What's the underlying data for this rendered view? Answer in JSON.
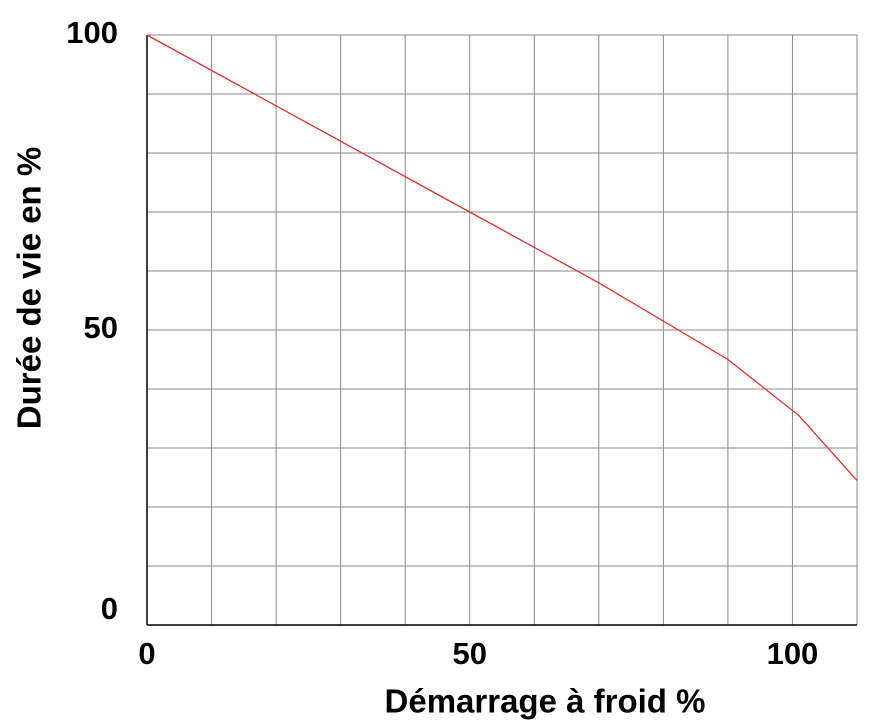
{
  "chart_data": {
    "type": "line",
    "xlabel": "Démarrage à froid %",
    "ylabel": "Durée de vie en %",
    "x": [
      0,
      50,
      70,
      90,
      101,
      110
    ],
    "series": [
      {
        "color": "#e0302a",
        "values": [
          100,
          70,
          58,
          45,
          35.5,
          24.5
        ]
      }
    ],
    "xlim": [
      0,
      110
    ],
    "ylim": [
      0,
      100
    ],
    "xticks": [
      0,
      50,
      100
    ],
    "yticks": [
      0,
      50,
      100
    ],
    "xgrid": [
      0,
      10,
      20,
      30,
      40,
      50,
      60,
      70,
      80,
      90,
      100,
      110
    ],
    "ygrid": [
      0,
      10,
      20,
      30,
      40,
      50,
      60,
      70,
      80,
      90,
      100
    ],
    "grid": true
  }
}
